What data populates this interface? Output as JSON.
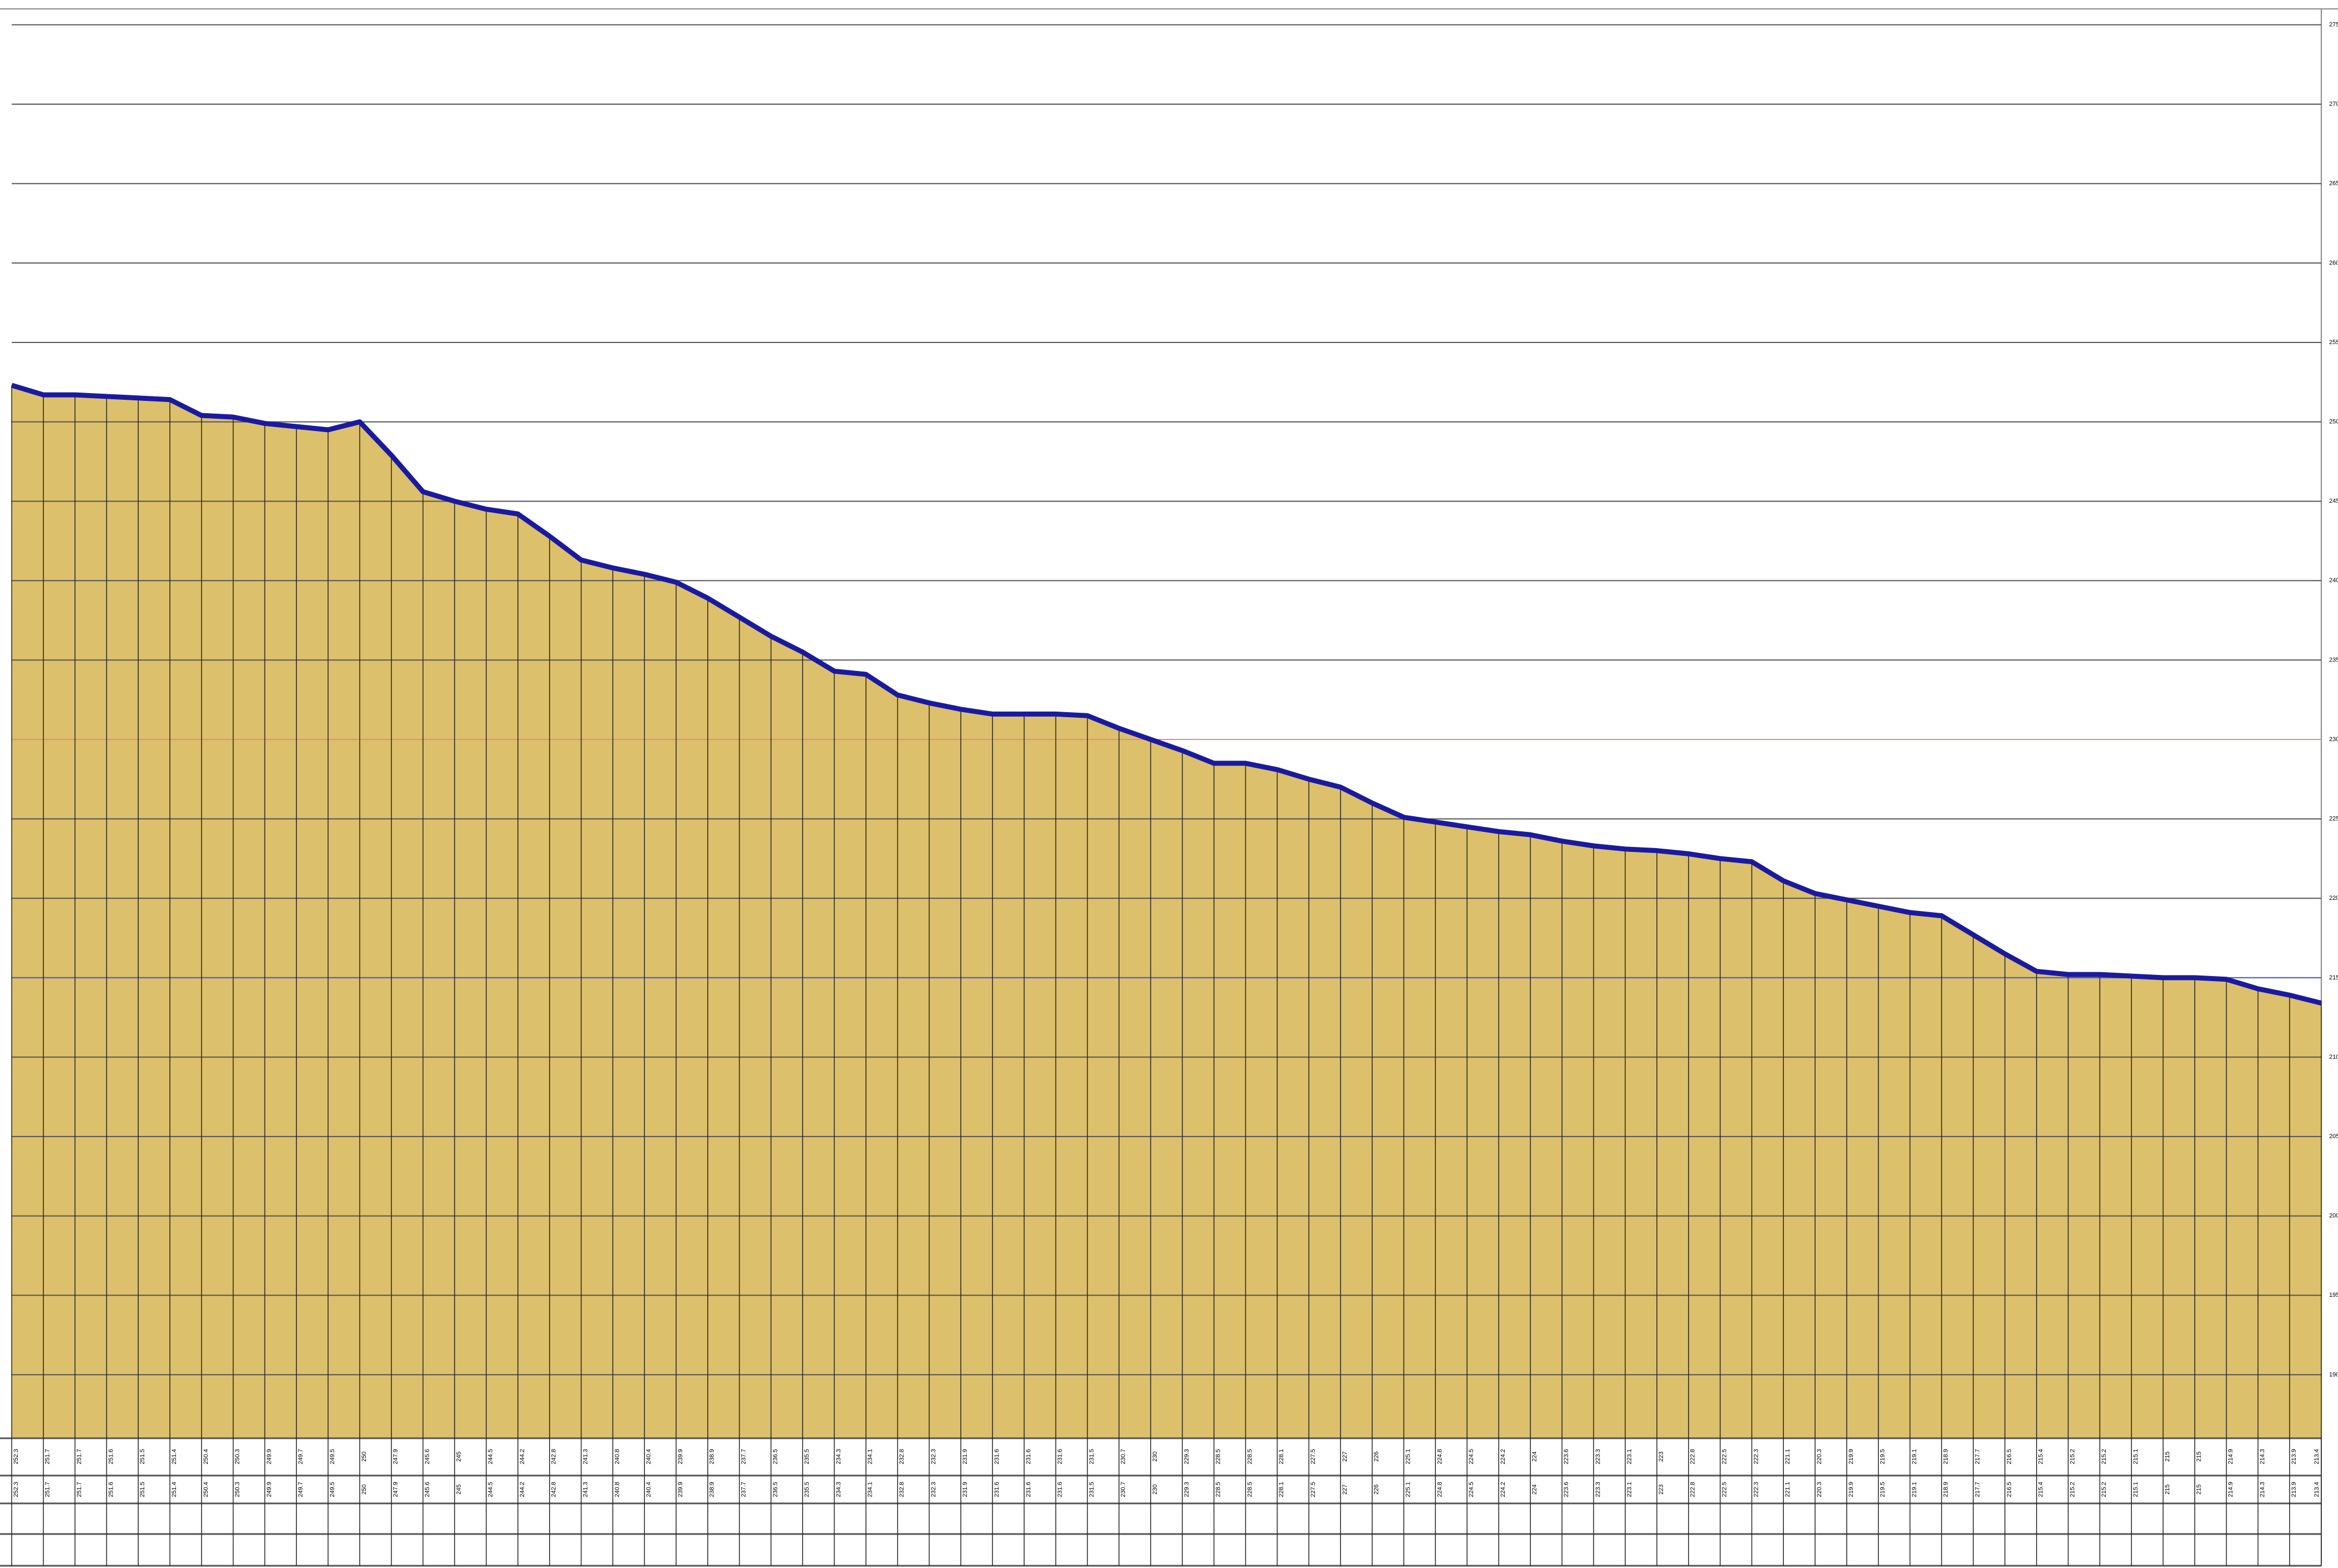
{
  "chart_data": {
    "type": "area",
    "values": [
      252.3,
      251.7,
      251.7,
      251.6,
      251.5,
      251.4,
      250.4,
      250.3,
      249.9,
      249.7,
      249.5,
      250.0,
      247.9,
      245.6,
      245.0,
      244.5,
      244.2,
      242.8,
      241.3,
      240.8,
      240.4,
      239.9,
      238.9,
      237.7,
      236.5,
      235.5,
      234.3,
      234.1,
      232.8,
      232.3,
      231.9,
      231.6,
      231.6,
      231.6,
      231.5,
      230.7,
      230.0,
      229.3,
      228.5,
      228.5,
      228.1,
      227.5,
      227.0,
      226.0,
      225.1,
      224.8,
      224.5,
      224.2,
      224.0,
      223.6,
      223.3,
      223.1,
      223.0,
      222.8,
      222.5,
      222.3,
      221.1,
      220.3,
      219.9,
      219.5,
      219.1,
      218.9,
      217.7,
      216.5,
      215.4,
      215.2,
      215.2,
      215.1,
      215.0,
      215.0,
      214.9,
      214.3,
      213.9,
      213.4
    ],
    "color": "#dcc06c",
    "line_color": "#1a1aa0",
    "ylim": [
      186,
      276
    ],
    "yticks": [
      190,
      195,
      200,
      205,
      210,
      215,
      220,
      225,
      230,
      235,
      240,
      245,
      250,
      255,
      260,
      265,
      270,
      275
    ],
    "grid": true,
    "reference_lines": [
      {
        "value": 230,
        "color": "#ff8080"
      },
      {
        "value": 215,
        "color": "#4060ff"
      }
    ]
  }
}
